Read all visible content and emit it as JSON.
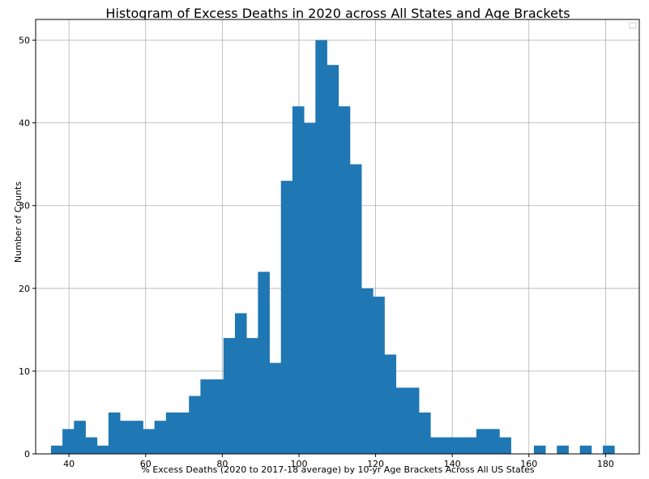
{
  "chart_data": {
    "type": "bar",
    "title": "Histogram of Excess Deaths in 2020 across All States and Age Brackets",
    "xlabel": "% Excess Deaths (2020 to 2017-18 average) by 10-yr Age Brackets Across All US States",
    "ylabel": "Number of Counts",
    "xlim": [
      31.3,
      188.8
    ],
    "ylim": [
      0,
      52.5
    ],
    "x_ticks": [
      40,
      60,
      80,
      100,
      120,
      140,
      160,
      180
    ],
    "y_ticks": [
      0,
      10,
      20,
      30,
      40,
      50
    ],
    "bin_start": 35.3,
    "bin_width": 3.0,
    "values": [
      1,
      3,
      4,
      2,
      1,
      5,
      4,
      4,
      3,
      4,
      5,
      5,
      7,
      9,
      9,
      14,
      17,
      14,
      22,
      11,
      33,
      42,
      40,
      50,
      47,
      42,
      35,
      20,
      19,
      12,
      8,
      8,
      5,
      2,
      2,
      2,
      2,
      3,
      3,
      2,
      0,
      0,
      1,
      0,
      1,
      0,
      1,
      0,
      1
    ],
    "bar_color": "#1f77b4",
    "grid": true,
    "legend": "top-right"
  }
}
